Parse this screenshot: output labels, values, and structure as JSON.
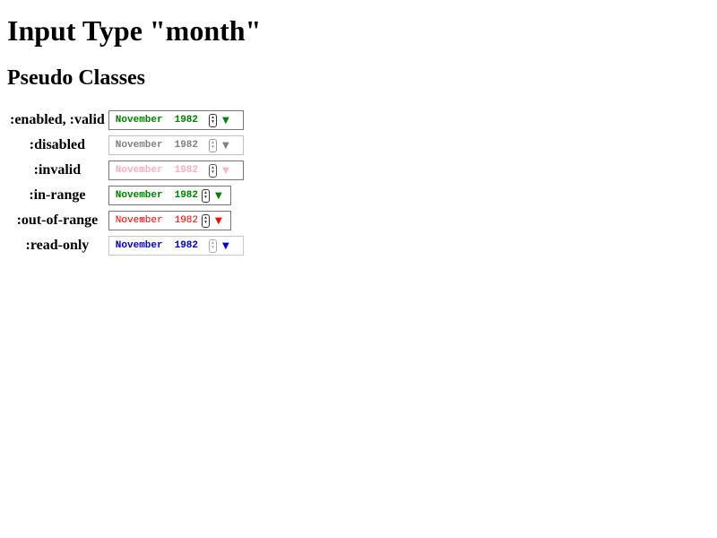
{
  "page": {
    "title": "Input Type \"month\"",
    "subtitle": "Pseudo Classes"
  },
  "rows": [
    {
      "label": ":enabled, :valid",
      "month": "November",
      "year": "1982"
    },
    {
      "label": ":disabled",
      "month": "November",
      "year": "1982"
    },
    {
      "label": ":invalid",
      "month": "November",
      "year": "1982"
    },
    {
      "label": ":in-range",
      "month": "November",
      "year": "1982"
    },
    {
      "label": ":out-of-range",
      "month": "November",
      "year": "1982"
    },
    {
      "label": ":read-only",
      "month": "November",
      "year": "1982"
    }
  ],
  "colors": {
    "valid": "#008000",
    "disabled": "#808080",
    "invalid": "#ffb6c1",
    "in_range": "#008000",
    "out_of_range": "#ff0000",
    "read_only": "#0000cd"
  },
  "icons": {
    "spinner": "spinner-icon",
    "dropdown": "dropdown-arrow-icon"
  }
}
